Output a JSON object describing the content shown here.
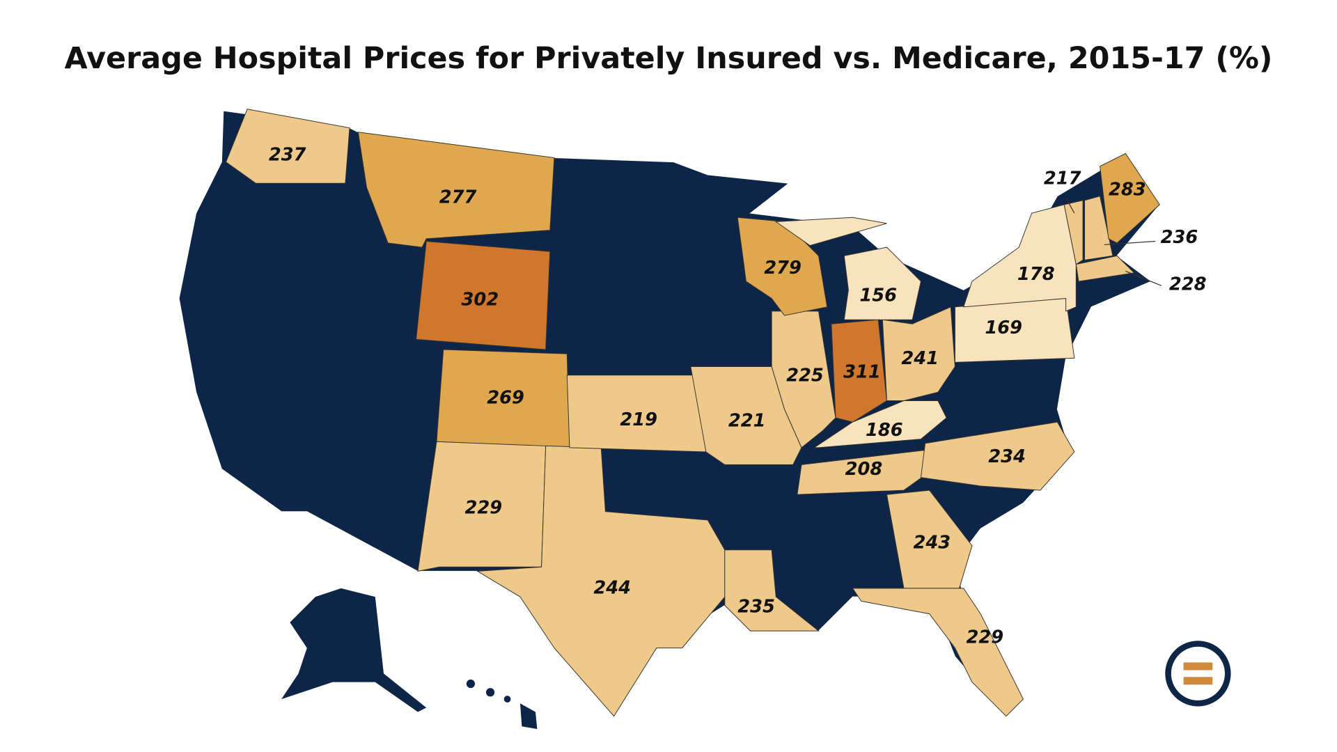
{
  "title": "Average Hospital Prices for Privately Insured vs. Medicare, 2015-17 (%)",
  "states": [
    {
      "value": 237,
      "color": "#efc98a"
    },
    {
      "value": 277,
      "color": "#e0a84e"
    },
    {
      "value": 302,
      "color": "#cf772c"
    },
    {
      "value": 269,
      "color": "#e0a84e"
    },
    {
      "value": 229,
      "color": "#efc98a"
    },
    {
      "value": 244,
      "color": "#efc98a"
    },
    {
      "value": 219,
      "color": "#efc98a"
    },
    {
      "value": 221,
      "color": "#efc98a"
    },
    {
      "value": 225,
      "color": "#efc98a"
    },
    {
      "value": 311,
      "color": "#cf772c"
    },
    {
      "value": 241,
      "color": "#efc98a"
    },
    {
      "value": 186,
      "color": "#f8e3bd"
    },
    {
      "value": 208,
      "color": "#efc98a"
    },
    {
      "value": 234,
      "color": "#efc98a"
    },
    {
      "value": 243,
      "color": "#efc98a"
    },
    {
      "value": 229,
      "color": "#efc98a"
    },
    {
      "value": 235,
      "color": "#efc98a"
    },
    {
      "value": 279,
      "color": "#e0a84e"
    },
    {
      "value": 156,
      "color": "#f8e3bd"
    },
    {
      "value": 169,
      "color": "#f8e3bd"
    },
    {
      "value": 178,
      "color": "#f8e3bd"
    },
    {
      "value": 217,
      "color": "#efc98a"
    },
    {
      "value": 236,
      "color": "#efc98a"
    },
    {
      "value": 283,
      "color": "#e0a84e"
    },
    {
      "value": 228,
      "color": "#efc98a"
    }
  ]
}
